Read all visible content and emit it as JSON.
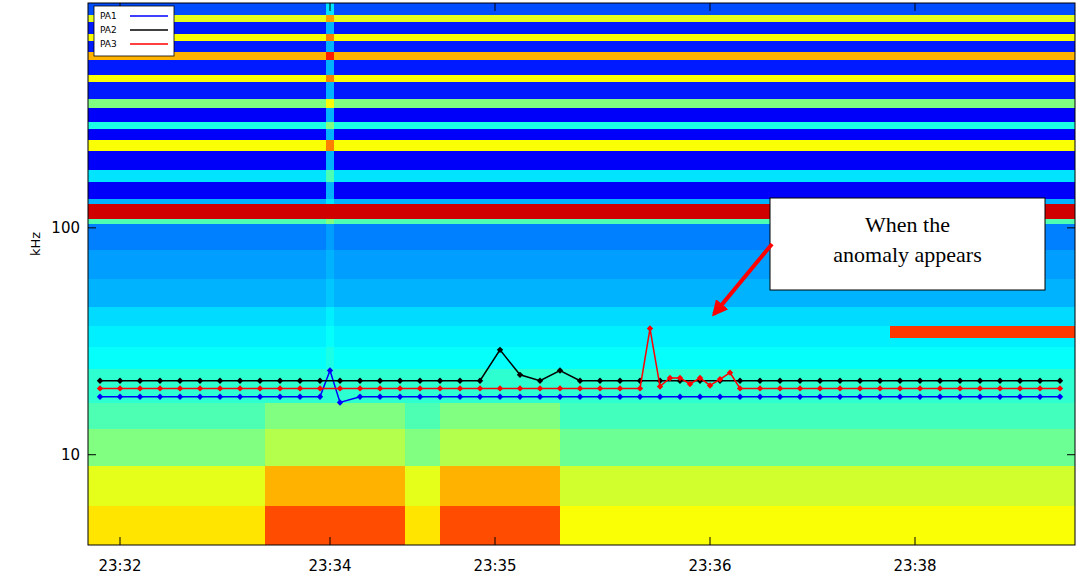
{
  "chart_data": {
    "type": "spectrogram",
    "ylabel": "kHz",
    "log": "y",
    "xlim": [
      31.84,
      36.775
    ],
    "ylim": [
      4,
      980
    ],
    "xticks": [
      {
        "value": 32,
        "label": "23:32"
      },
      {
        "value": 33.05,
        "label": "23:34"
      },
      {
        "value": 33.875,
        "label": "23:35"
      },
      {
        "value": 34.95,
        "label": "23:36"
      },
      {
        "value": 35.975,
        "label": "23:38"
      }
    ],
    "yticks": [
      10,
      100
    ],
    "legend": "upper left",
    "heatmap": {
      "x_edges": [
        31.84,
        32.725,
        33.03,
        33.07,
        33.425,
        33.6,
        34.2,
        35.85,
        36.775
      ],
      "y_edges": [
        4,
        6,
        9,
        13,
        17,
        24,
        30,
        33,
        37,
        45,
        60,
        80,
        105,
        110,
        128,
        135,
        160,
        180,
        220,
        245,
        275,
        295,
        340,
        370,
        440,
        475,
        555,
        600,
        670,
        720,
        810,
        870,
        980
      ],
      "color_range": [
        0,
        1
      ],
      "values": [
        [
          0.65,
          0.8,
          0.8,
          0.8,
          0.65,
          0.8,
          0.62,
          0.62
        ],
        [
          0.6,
          0.7,
          0.7,
          0.7,
          0.6,
          0.7,
          0.58,
          0.58
        ],
        [
          0.5,
          0.55,
          0.55,
          0.55,
          0.5,
          0.55,
          0.48,
          0.48
        ],
        [
          0.45,
          0.5,
          0.5,
          0.5,
          0.45,
          0.5,
          0.44,
          0.44
        ],
        [
          0.42,
          0.42,
          0.42,
          0.42,
          0.42,
          0.42,
          0.42,
          0.42
        ],
        [
          0.38,
          0.38,
          0.4,
          0.38,
          0.38,
          0.38,
          0.38,
          0.38
        ],
        [
          0.36,
          0.36,
          0.38,
          0.36,
          0.36,
          0.36,
          0.36,
          0.36
        ],
        [
          0.36,
          0.36,
          0.38,
          0.36,
          0.36,
          0.36,
          0.36,
          0.82
        ],
        [
          0.34,
          0.34,
          0.36,
          0.34,
          0.34,
          0.34,
          0.34,
          0.34
        ],
        [
          0.3,
          0.3,
          0.32,
          0.3,
          0.3,
          0.3,
          0.3,
          0.3
        ],
        [
          0.28,
          0.28,
          0.3,
          0.28,
          0.28,
          0.28,
          0.28,
          0.28
        ],
        [
          0.25,
          0.25,
          0.28,
          0.25,
          0.25,
          0.25,
          0.25,
          0.25
        ],
        [
          0.45,
          0.45,
          0.5,
          0.45,
          0.45,
          0.45,
          0.45,
          0.45
        ],
        [
          0.92,
          0.92,
          0.92,
          0.92,
          0.92,
          0.92,
          0.92,
          0.92
        ],
        [
          0.3,
          0.3,
          0.35,
          0.3,
          0.3,
          0.3,
          0.3,
          0.3
        ],
        [
          0.12,
          0.12,
          0.3,
          0.12,
          0.12,
          0.12,
          0.12,
          0.12
        ],
        [
          0.35,
          0.35,
          0.45,
          0.35,
          0.35,
          0.35,
          0.35,
          0.35
        ],
        [
          0.12,
          0.12,
          0.3,
          0.12,
          0.12,
          0.12,
          0.12,
          0.12
        ],
        [
          0.62,
          0.62,
          0.75,
          0.62,
          0.62,
          0.62,
          0.62,
          0.62
        ],
        [
          0.12,
          0.12,
          0.3,
          0.12,
          0.12,
          0.12,
          0.12,
          0.12
        ],
        [
          0.4,
          0.4,
          0.5,
          0.4,
          0.4,
          0.4,
          0.4,
          0.4
        ],
        [
          0.12,
          0.12,
          0.3,
          0.12,
          0.12,
          0.12,
          0.12,
          0.12
        ],
        [
          0.5,
          0.5,
          0.62,
          0.5,
          0.5,
          0.5,
          0.5,
          0.5
        ],
        [
          0.15,
          0.15,
          0.3,
          0.15,
          0.15,
          0.15,
          0.15,
          0.15
        ],
        [
          0.62,
          0.62,
          0.75,
          0.62,
          0.62,
          0.62,
          0.62,
          0.62
        ],
        [
          0.15,
          0.15,
          0.3,
          0.15,
          0.15,
          0.15,
          0.15,
          0.15
        ],
        [
          0.7,
          0.7,
          0.85,
          0.7,
          0.7,
          0.7,
          0.7,
          0.7
        ],
        [
          0.15,
          0.15,
          0.3,
          0.15,
          0.15,
          0.15,
          0.15,
          0.15
        ],
        [
          0.62,
          0.62,
          0.75,
          0.62,
          0.62,
          0.62,
          0.62,
          0.62
        ],
        [
          0.15,
          0.15,
          0.3,
          0.15,
          0.15,
          0.15,
          0.15,
          0.15
        ],
        [
          0.6,
          0.6,
          0.72,
          0.6,
          0.6,
          0.6,
          0.6,
          0.6
        ],
        [
          0.2,
          0.2,
          0.35,
          0.2,
          0.2,
          0.2,
          0.2,
          0.2
        ]
      ]
    },
    "series": [
      {
        "name": "PA1",
        "color": "#0000ff",
        "marker": "diamond",
        "line_style": "solid",
        "x": [
          31.9,
          32.0,
          32.1,
          32.2,
          32.3,
          32.4,
          32.5,
          32.6,
          32.7,
          32.8,
          32.9,
          33.0,
          33.05,
          33.1,
          33.2,
          33.3,
          33.4,
          33.5,
          33.6,
          33.7,
          33.8,
          33.9,
          34.0,
          34.1,
          34.2,
          34.3,
          34.4,
          34.5,
          34.6,
          34.7,
          34.8,
          34.9,
          35.0,
          35.1,
          35.2,
          35.3,
          35.4,
          35.5,
          35.6,
          35.7,
          35.8,
          35.9,
          36.0,
          36.1,
          36.2,
          36.3,
          36.4,
          36.5,
          36.6,
          36.7
        ],
        "values": [
          18,
          18,
          18,
          18,
          18,
          18,
          18,
          18,
          18,
          18,
          18,
          18,
          23.5,
          17,
          18,
          18,
          18,
          18,
          18,
          18,
          18,
          18,
          18,
          18,
          18,
          18,
          18,
          18,
          18,
          18,
          18,
          18,
          18,
          18,
          18,
          18,
          18,
          18,
          18,
          18,
          18,
          18,
          18,
          18,
          18,
          18,
          18,
          18,
          18,
          18
        ]
      },
      {
        "name": "PA2",
        "color": "#000000",
        "marker": "diamond",
        "line_style": "solid",
        "x": [
          31.9,
          32.0,
          32.1,
          32.2,
          32.3,
          32.4,
          32.5,
          32.6,
          32.7,
          32.8,
          32.9,
          33.0,
          33.1,
          33.2,
          33.3,
          33.4,
          33.5,
          33.6,
          33.7,
          33.8,
          33.9,
          34.0,
          34.1,
          34.2,
          34.3,
          34.4,
          34.5,
          34.6,
          34.7,
          34.8,
          34.9,
          35.0,
          35.1,
          35.2,
          35.3,
          35.4,
          35.5,
          35.6,
          35.7,
          35.8,
          35.9,
          36.0,
          36.1,
          36.2,
          36.3,
          36.4,
          36.5,
          36.6,
          36.7
        ],
        "values": [
          21.2,
          21.2,
          21.2,
          21.2,
          21.2,
          21.2,
          21.2,
          21.2,
          21.2,
          21.2,
          21.2,
          21.2,
          21.2,
          21.2,
          21.2,
          21.2,
          21.2,
          21.2,
          21.2,
          21.2,
          29,
          22.5,
          21.2,
          23.5,
          21.2,
          21.2,
          21.2,
          21.2,
          21.2,
          21.2,
          21.2,
          21.2,
          21.2,
          21.2,
          21.2,
          21.2,
          21.2,
          21.2,
          21.2,
          21.2,
          21.2,
          21.2,
          21.2,
          21.2,
          21.2,
          21.2,
          21.2,
          21.2,
          21.2
        ]
      },
      {
        "name": "PA3",
        "color": "#ff0000",
        "marker": "diamond",
        "line_style": "solid",
        "x": [
          31.9,
          32.0,
          32.1,
          32.2,
          32.3,
          32.4,
          32.5,
          32.6,
          32.7,
          32.8,
          32.9,
          33.0,
          33.1,
          33.2,
          33.3,
          33.4,
          33.5,
          33.6,
          33.7,
          33.8,
          33.9,
          34.0,
          34.1,
          34.2,
          34.3,
          34.4,
          34.5,
          34.6,
          34.65,
          34.7,
          34.75,
          34.8,
          34.85,
          34.9,
          34.95,
          35.0,
          35.05,
          35.1,
          35.2,
          35.3,
          35.4,
          35.5,
          35.6,
          35.7,
          35.8,
          35.9,
          36.0,
          36.1,
          36.2,
          36.3,
          36.4,
          36.5,
          36.6,
          36.7
        ],
        "values": [
          19.6,
          19.6,
          19.6,
          19.6,
          19.6,
          19.6,
          19.6,
          19.6,
          19.6,
          19.6,
          19.6,
          19.6,
          19.6,
          19.6,
          19.6,
          19.6,
          19.6,
          19.6,
          19.6,
          19.6,
          19.6,
          19.6,
          19.6,
          19.6,
          19.6,
          19.6,
          19.6,
          19.6,
          36,
          20,
          21.8,
          21.8,
          20.5,
          21.8,
          20.2,
          21.5,
          23,
          19.6,
          19.6,
          19.6,
          19.6,
          19.6,
          19.6,
          19.6,
          19.6,
          19.6,
          19.6,
          19.6,
          19.6,
          19.6,
          19.6,
          19.6,
          19.6,
          19.6
        ]
      }
    ],
    "annotations": [
      {
        "text": "When the anomaly appears",
        "x": 34.94,
        "y": 40
      }
    ]
  }
}
